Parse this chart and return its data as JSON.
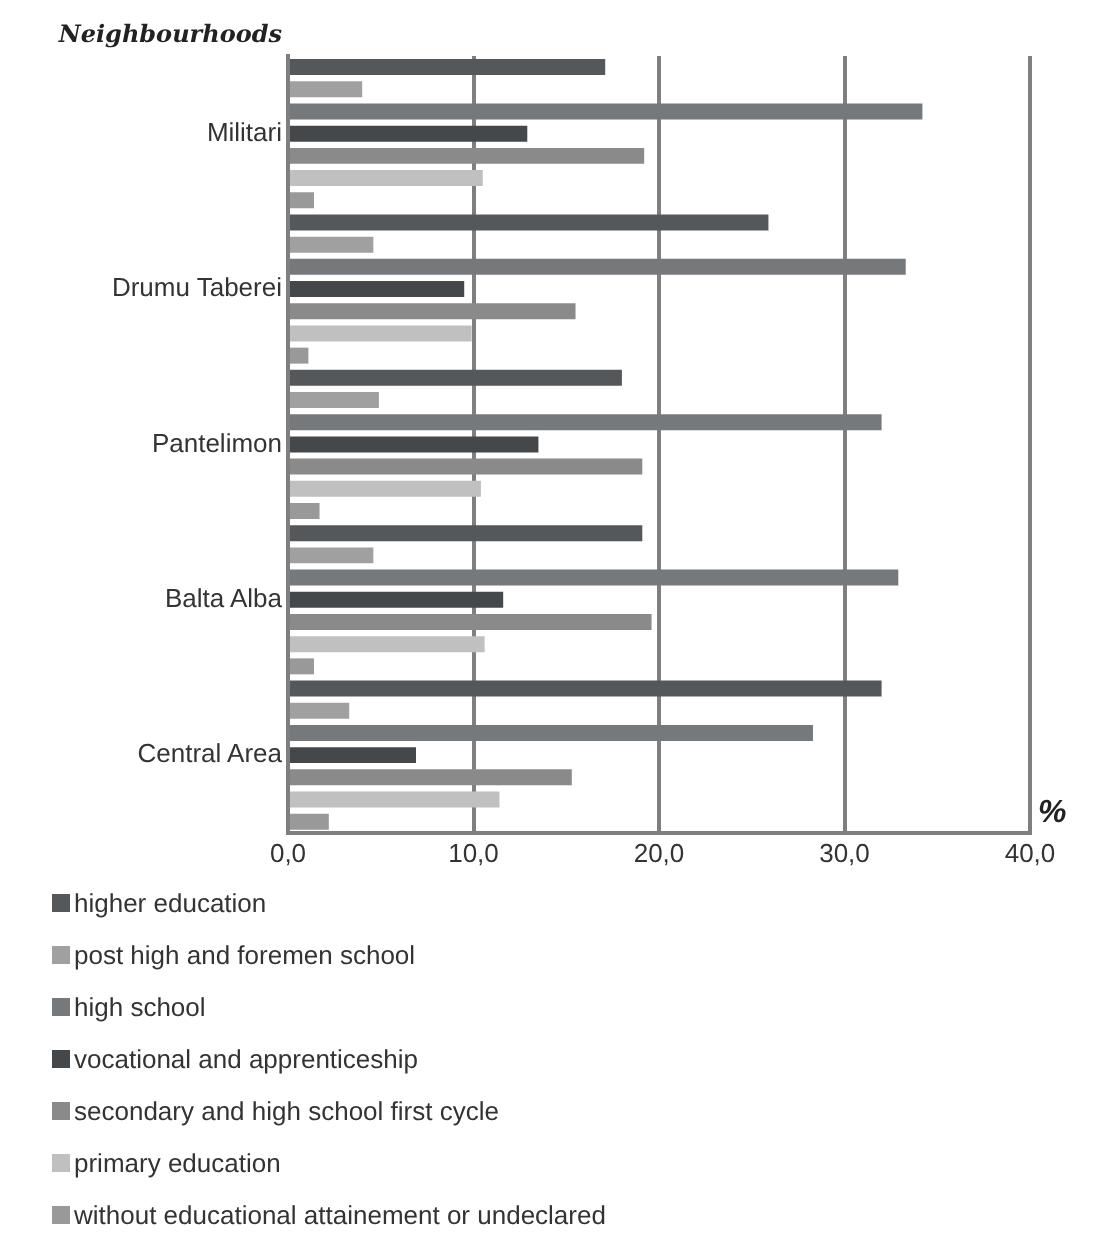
{
  "chart_data": {
    "type": "bar",
    "orientation": "horizontal",
    "ylabel": "Neighbourhoods",
    "xlabel": "%",
    "categories": [
      "Militari",
      "Drumu Taberei",
      "Pantelimon",
      "Balta Alba",
      "Central Area"
    ],
    "series": [
      {
        "name": "higher education",
        "color": "#55585b",
        "values": [
          17.1,
          25.9,
          18.0,
          19.1,
          32.0
        ]
      },
      {
        "name": "post high and foremen school",
        "color": "#a0a0a0",
        "values": [
          4.0,
          4.6,
          4.9,
          4.6,
          3.3
        ]
      },
      {
        "name": "high school",
        "color": "#76797c",
        "values": [
          34.2,
          33.3,
          32.0,
          32.9,
          28.3
        ]
      },
      {
        "name": "vocational and apprenticeship",
        "color": "#45484b",
        "values": [
          12.9,
          9.5,
          13.5,
          11.6,
          6.9
        ]
      },
      {
        "name": "secondary and high school first cycle",
        "color": "#8a8a8a",
        "values": [
          19.2,
          15.5,
          19.1,
          19.6,
          15.3
        ]
      },
      {
        "name": "primary education",
        "color": "#c0c0c0",
        "values": [
          10.5,
          9.9,
          10.4,
          10.6,
          11.4
        ]
      },
      {
        "name": "without educational attainement or undeclared",
        "color": "#999999",
        "values": [
          1.4,
          1.1,
          1.7,
          1.4,
          2.2
        ]
      }
    ],
    "xlim": [
      0,
      40
    ],
    "xticks": [
      {
        "value": 0,
        "label": "0,0"
      },
      {
        "value": 10,
        "label": "10,0"
      },
      {
        "value": 20,
        "label": "20,0"
      },
      {
        "value": 30,
        "label": "30,0"
      },
      {
        "value": 40,
        "label": "40,0"
      }
    ],
    "grid": "x",
    "legend": "bottom"
  }
}
